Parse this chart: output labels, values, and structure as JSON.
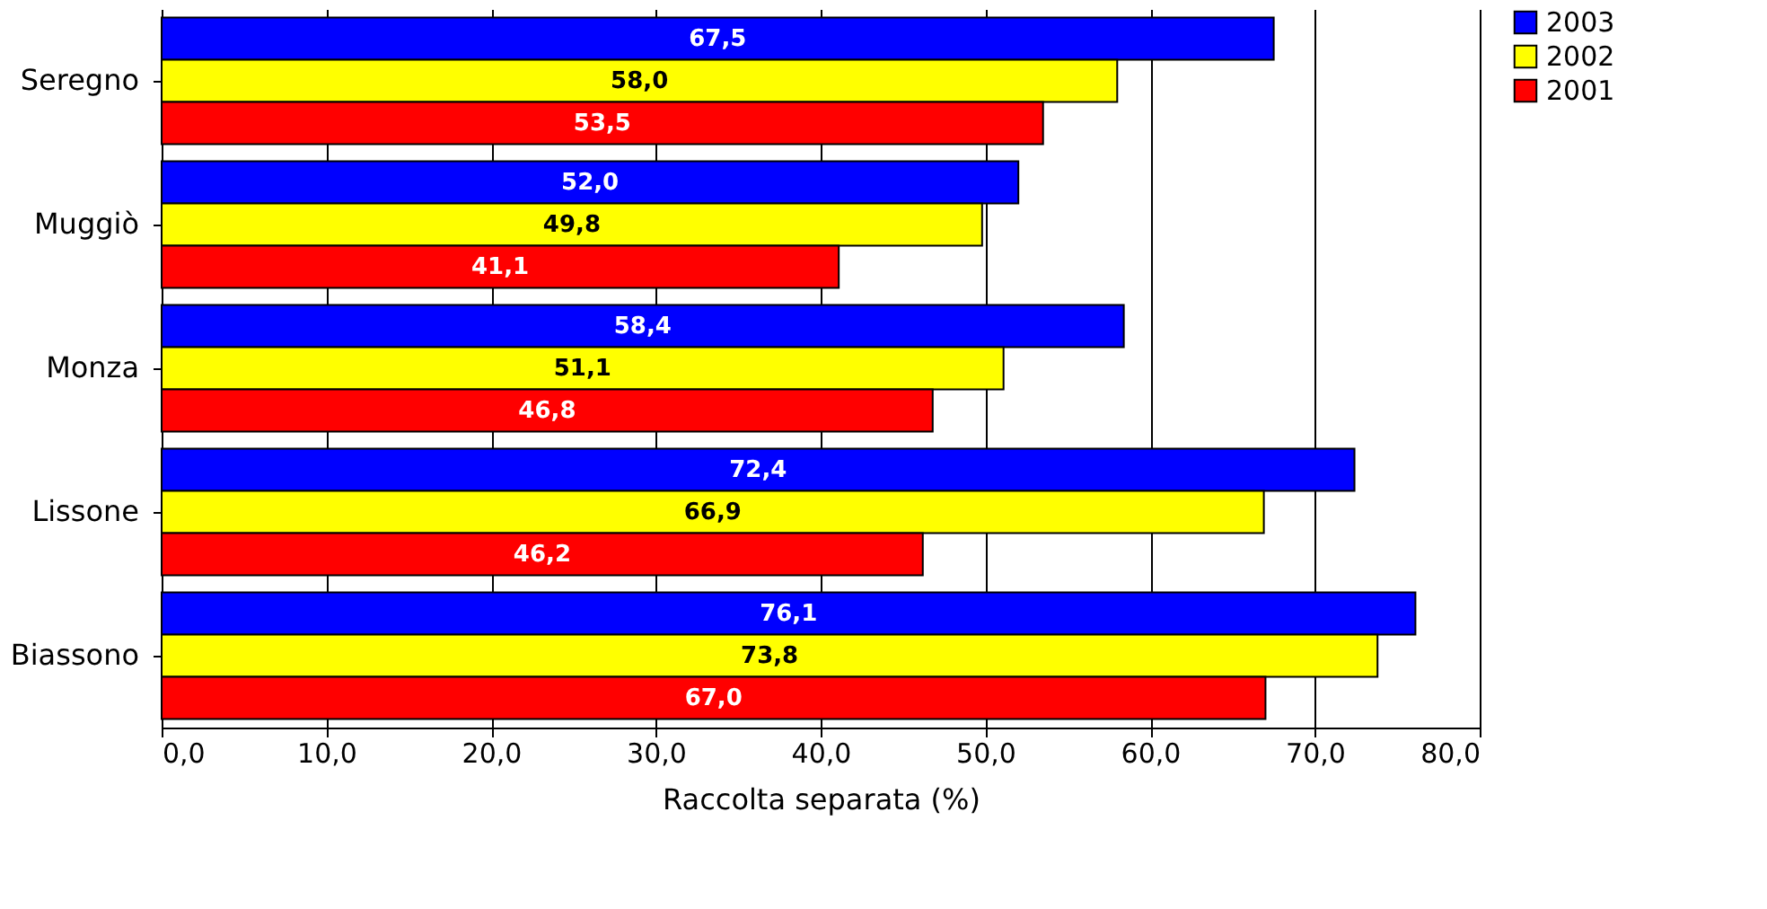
{
  "chart_data": {
    "type": "bar",
    "orientation": "horizontal",
    "xlabel": "Raccolta separata (%)",
    "categories": [
      "Seregno",
      "Muggiò",
      "Monza",
      "Lissone",
      "Biassono"
    ],
    "series": [
      {
        "name": "2003",
        "color": "#0000ff",
        "values": [
          67.5,
          52.0,
          58.4,
          72.4,
          76.1
        ],
        "value_labels": [
          "67,5",
          "52,0",
          "58,4",
          "72,4",
          "76,1"
        ]
      },
      {
        "name": "2002",
        "color": "#ffff00",
        "values": [
          58.0,
          49.8,
          51.1,
          66.9,
          73.8
        ],
        "value_labels": [
          "58,0",
          "49,8",
          "51,1",
          "66,9",
          "73,8"
        ]
      },
      {
        "name": "2001",
        "color": "#ff0000",
        "values": [
          53.5,
          41.1,
          46.8,
          46.2,
          67.0
        ],
        "value_labels": [
          "53,5",
          "41,1",
          "46,8",
          "46,2",
          "67,0"
        ]
      }
    ],
    "xlim": [
      0,
      80
    ],
    "xticks": [
      {
        "value": 0,
        "label": "0,0"
      },
      {
        "value": 10,
        "label": "10,0"
      },
      {
        "value": 20,
        "label": "20,0"
      },
      {
        "value": 30,
        "label": "30,0"
      },
      {
        "value": 40,
        "label": "40,0"
      },
      {
        "value": 50,
        "label": "50,0"
      },
      {
        "value": 60,
        "label": "60,0"
      },
      {
        "value": 70,
        "label": "70,0"
      },
      {
        "value": 80,
        "label": "80,0"
      }
    ],
    "grid": "x",
    "legend": "right"
  }
}
